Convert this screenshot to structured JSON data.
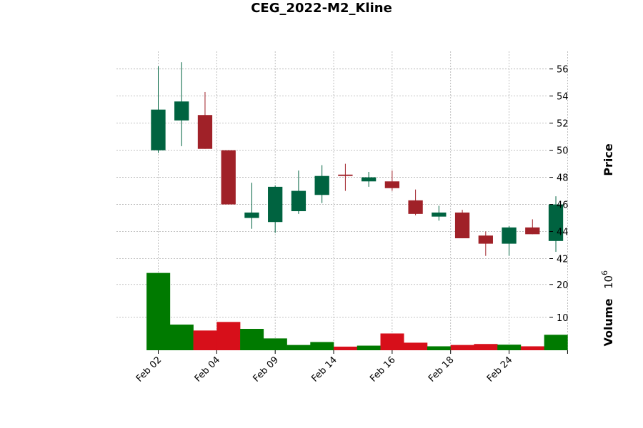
{
  "chart_data": {
    "type": "candlestick",
    "title": "CEG_2022-M2_Kline",
    "ylabel": "Price",
    "volume_label": "Volume",
    "volume_exponent_base": "10",
    "volume_exponent_power": "6",
    "colors": {
      "up": "#006340",
      "down": "#a02128",
      "vol_up": "#007a00",
      "vol_down": "#d70f1a",
      "grid": "#b0b0b0"
    },
    "price_ylim": [
      41.5,
      57.3
    ],
    "price_ticks": [
      42,
      44,
      46,
      48,
      50,
      52,
      54,
      56
    ],
    "volume_ylim": [
      0,
      24.5
    ],
    "volume_ticks": [
      10,
      20
    ],
    "grid": true,
    "x_tick_labels": [
      "Feb 02",
      "Feb 04",
      "Feb 09",
      "Feb 14",
      "Feb 16",
      "Feb 18",
      "Feb 24"
    ],
    "candles": [
      {
        "open": 50.0,
        "close": 53.0,
        "high": 56.2,
        "low": 49.8,
        "volume": 23.5
      },
      {
        "open": 52.2,
        "close": 53.6,
        "high": 56.5,
        "low": 50.3,
        "volume": 7.8
      },
      {
        "open": 52.6,
        "close": 50.1,
        "high": 54.3,
        "low": 50.1,
        "volume": 6.0
      },
      {
        "open": 50.0,
        "close": 46.0,
        "high": 50.0,
        "low": 46.0,
        "volume": 8.6
      },
      {
        "open": 45.0,
        "close": 45.4,
        "high": 47.6,
        "low": 44.2,
        "volume": 6.5
      },
      {
        "open": 44.7,
        "close": 47.3,
        "high": 47.4,
        "low": 43.9,
        "volume": 3.6
      },
      {
        "open": 45.5,
        "close": 47.0,
        "high": 48.5,
        "low": 45.3,
        "volume": 1.6
      },
      {
        "open": 46.7,
        "close": 48.1,
        "high": 48.9,
        "low": 46.1,
        "volume": 2.5
      },
      {
        "open": 48.2,
        "close": 48.1,
        "high": 49.0,
        "low": 47.0,
        "volume": 1.1
      },
      {
        "open": 47.7,
        "close": 48.0,
        "high": 48.4,
        "low": 47.3,
        "volume": 1.4
      },
      {
        "open": 47.7,
        "close": 47.2,
        "high": 48.5,
        "low": 47.0,
        "volume": 5.1
      },
      {
        "open": 46.3,
        "close": 45.3,
        "high": 47.1,
        "low": 45.2,
        "volume": 2.3
      },
      {
        "open": 45.1,
        "close": 45.4,
        "high": 45.9,
        "low": 44.8,
        "volume": 1.2
      },
      {
        "open": 45.4,
        "close": 43.5,
        "high": 45.6,
        "low": 43.5,
        "volume": 1.6
      },
      {
        "open": 43.7,
        "close": 43.1,
        "high": 44.0,
        "low": 42.2,
        "volume": 1.9
      },
      {
        "open": 43.1,
        "close": 44.3,
        "high": 44.4,
        "low": 42.2,
        "volume": 1.7
      },
      {
        "open": 44.3,
        "close": 43.8,
        "high": 44.9,
        "low": 43.8,
        "volume": 1.2
      },
      {
        "open": 43.3,
        "close": 46.0,
        "high": 46.6,
        "low": 42.5,
        "volume": 4.7
      }
    ]
  }
}
